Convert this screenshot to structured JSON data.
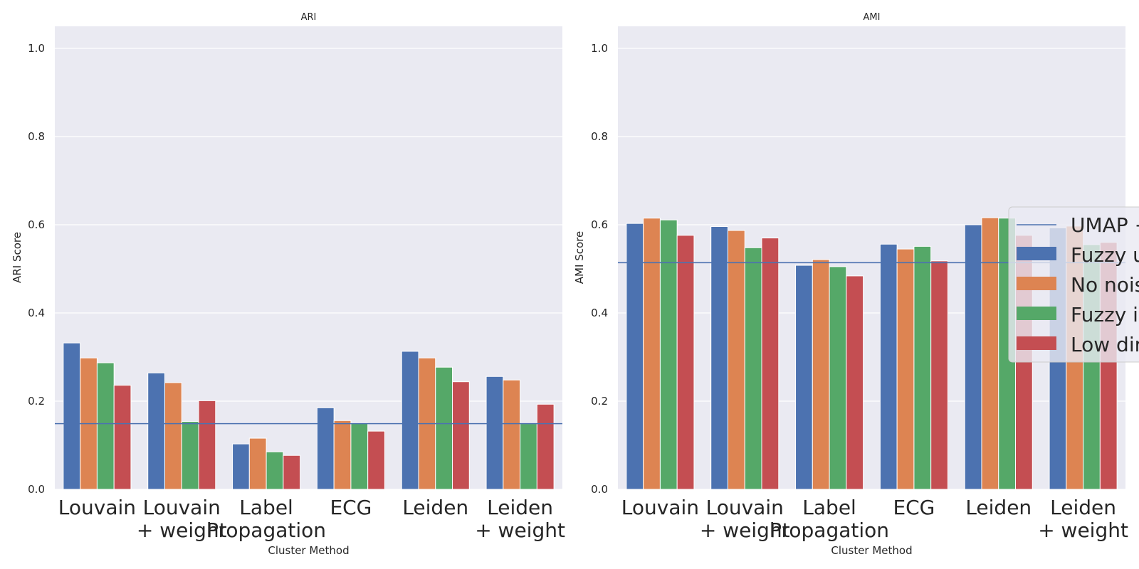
{
  "chart_data": [
    {
      "type": "bar",
      "title": "ARI",
      "xlabel": "Cluster Method",
      "ylabel": "ARI Score",
      "ylim": [
        0,
        1.05
      ],
      "yticks": [
        "0.0",
        "0.2",
        "0.4",
        "0.6",
        "0.8",
        "1.0"
      ],
      "grid": true,
      "categories": [
        [
          "Louvain"
        ],
        [
          "Louvain",
          "+ weight"
        ],
        [
          "Label",
          "Propagation"
        ],
        [
          "ECG"
        ],
        [
          "Leiden"
        ],
        [
          "Leiden",
          "+ weight"
        ]
      ],
      "series": [
        {
          "values": [
            0.332,
            0.264,
            0.103,
            0.185,
            0.313,
            0.256
          ]
        },
        {
          "values": [
            0.298,
            0.242,
            0.116,
            0.156,
            0.298,
            0.248
          ]
        },
        {
          "values": [
            0.287,
            0.154,
            0.085,
            0.15,
            0.277,
            0.149
          ]
        },
        {
          "values": [
            0.236,
            0.201,
            0.077,
            0.132,
            0.244,
            0.193
          ]
        }
      ],
      "hline": 0.149
    },
    {
      "type": "bar",
      "title": "AMI",
      "xlabel": "Cluster Method",
      "ylabel": "AMI Score",
      "ylim": [
        0,
        1.05
      ],
      "yticks": [
        "0.0",
        "0.2",
        "0.4",
        "0.6",
        "0.8",
        "1.0"
      ],
      "grid": true,
      "categories": [
        [
          "Louvain"
        ],
        [
          "Louvain",
          "+ weight"
        ],
        [
          "Label",
          "Propagation"
        ],
        [
          "ECG"
        ],
        [
          "Leiden"
        ],
        [
          "Leiden",
          "+ weight"
        ]
      ],
      "series": [
        {
          "values": [
            0.603,
            0.596,
            0.508,
            0.556,
            0.6,
            0.593
          ]
        },
        {
          "values": [
            0.615,
            0.587,
            0.521,
            0.545,
            0.616,
            0.597
          ]
        },
        {
          "values": [
            0.611,
            0.548,
            0.505,
            0.551,
            0.615,
            0.555
          ]
        },
        {
          "values": [
            0.576,
            0.57,
            0.484,
            0.518,
            0.576,
            0.56
          ]
        }
      ],
      "hline": 0.514
    }
  ],
  "legend": {
    "placement": "center-right (cropped at figure edge)",
    "items": [
      "UMAP +",
      "Fuzzy u",
      "No nois",
      "Fuzzy i",
      "Low dir"
    ]
  },
  "colors": {
    "background": "#eaeaf2",
    "grid": "#ffffff",
    "series": [
      "#4c72b0",
      "#dd8452",
      "#55a868",
      "#c44e52"
    ],
    "hline": "#4c72b0"
  }
}
